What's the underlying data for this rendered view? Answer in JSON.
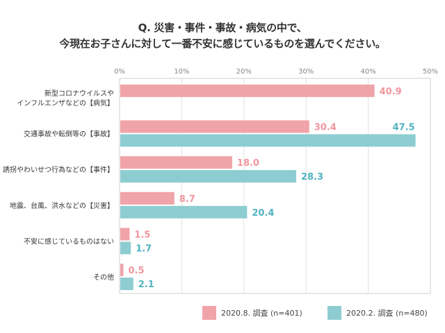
{
  "chart_data": {
    "type": "bar",
    "orientation": "horizontal",
    "title": "Q. 災害・事件・事故・病気の中で、今現在お子さんに対して一番不安に感じているものを選んでください。",
    "title_lines": [
      "Q. 災害・事件・事故・病気の中で、",
      "今現在お子さんに対して一番不安に感じているものを選んでください。"
    ],
    "categories": [
      [
        "新型コロナウイルスや",
        "インフルエンザなどの【病気】"
      ],
      [
        "交通事故や転倒等の【事故】"
      ],
      [
        "誘拐やわいせつ行為などの【事件】"
      ],
      [
        "地震、台風、洪水などの【災害】"
      ],
      [
        "不安に感じているものはない"
      ],
      [
        "その他"
      ]
    ],
    "series": [
      {
        "name": "2020.8. 調査 (n=401)",
        "color": "#f0a3a9",
        "label_color": "#f0959d",
        "values": [
          40.9,
          30.4,
          18.0,
          8.7,
          1.5,
          0.5
        ]
      },
      {
        "name": "2020.2. 調査 (n=480)",
        "color": "#8dcdd1",
        "label_color": "#4fb3bf",
        "values": [
          null,
          47.5,
          28.3,
          20.4,
          1.7,
          2.1
        ]
      }
    ],
    "value_labels": [
      [
        "40.9",
        "30.4",
        "18.0",
        "8.7",
        "1.5",
        "0.5"
      ],
      [
        "",
        "47.5",
        "28.3",
        "20.4",
        "1.7",
        "2.1"
      ]
    ],
    "xlim": [
      0,
      50
    ],
    "xticks": [
      0,
      10,
      20,
      30,
      40,
      50
    ],
    "xtick_labels": [
      "0%",
      "10%",
      "20%",
      "30%",
      "40%",
      "50%"
    ],
    "xlabel": "",
    "ylabel": "",
    "grid": true,
    "legend_position": "bottom-right"
  },
  "legend": {
    "items": [
      {
        "label": "2020.8. 調査 (n=401)",
        "color": "#f0a3a9"
      },
      {
        "label": "2020.2. 調査 (n=480)",
        "color": "#8dcdd1"
      }
    ]
  }
}
